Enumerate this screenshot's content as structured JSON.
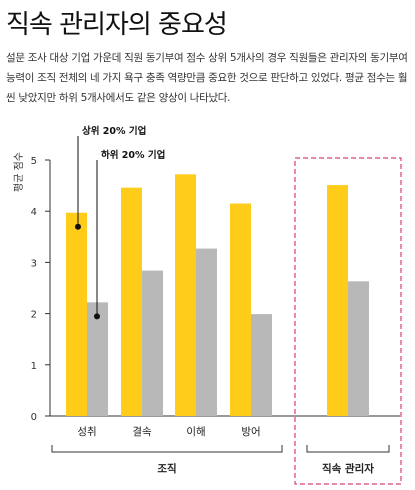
{
  "title": "직속 관리자의 중요성",
  "description": "설문 조사 대상 기업 가운데 직원 동기부여 점수 상위 5개사의 경우 직원들은 관리자의 동기부여 능력이 조직 전체의 네 가지 욕구 충족 역량만큼 중요한 것으로 판단하고 있었다. 평균 점수는 훨씬 낮았지만 하위 5개사에서도 같은 양상이 나타났다.",
  "colors": {
    "top": "#FFCC1A",
    "bottom": "#B8B8B8",
    "group_box": "#D4145A",
    "axis": "#333333"
  },
  "chart_data": {
    "type": "bar",
    "ylabel": "평균 점수",
    "ylim": [
      0,
      5
    ],
    "yticks": [
      "0",
      "1",
      "2",
      "3",
      "4",
      "5"
    ],
    "grid": false,
    "categories": [
      "성취",
      "결속",
      "이해",
      "방어",
      "직속 관리자"
    ],
    "series": [
      {
        "name": "상위 20% 기업",
        "values": [
          3.97,
          4.46,
          4.72,
          4.15,
          4.51
        ]
      },
      {
        "name": "하위 20% 기업",
        "values": [
          2.22,
          2.84,
          3.27,
          1.99,
          2.63
        ]
      }
    ],
    "group_labels": {
      "org": "조직",
      "manager": "직속 관리자"
    }
  }
}
